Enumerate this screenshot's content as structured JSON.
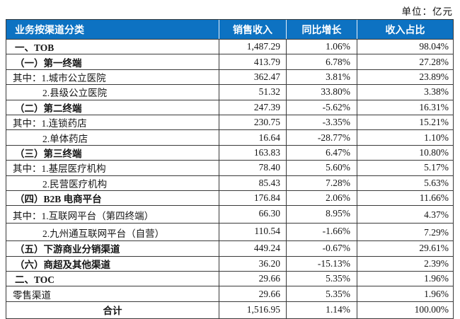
{
  "unit_note": "单位：亿元",
  "colors": {
    "header_bg": "#0D72C2",
    "header_text": "#FFFFFF",
    "border": "#3A3A3A",
    "body_text": "#151515"
  },
  "table": {
    "headers": [
      "业务按渠道分类",
      "销售收入",
      "同比增长",
      "收入占比"
    ],
    "rows": [
      {
        "label": "一、TOB",
        "revenue": "1,487.29",
        "growth": "1.06%",
        "share": "98.04%",
        "bold": true,
        "indent": "l1"
      },
      {
        "label": "（一）第一终端",
        "revenue": "413.79",
        "growth": "6.78%",
        "share": "27.28%",
        "bold": true,
        "indent": "l1"
      },
      {
        "label": "其中：1.城市公立医院",
        "revenue": "362.47",
        "growth": "3.81%",
        "share": "23.89%",
        "bold": false,
        "indent": "qz"
      },
      {
        "label": "2.县级公立医院",
        "revenue": "51.32",
        "growth": "33.80%",
        "share": "3.38%",
        "bold": false,
        "indent": "sub"
      },
      {
        "label": "（二）第二终端",
        "revenue": "247.39",
        "growth": "-5.62%",
        "share": "16.31%",
        "bold": true,
        "indent": "l1"
      },
      {
        "label": "其中：1.连锁药店",
        "revenue": "230.75",
        "growth": "-3.35%",
        "share": "15.21%",
        "bold": false,
        "indent": "qz"
      },
      {
        "label": "2.单体药店",
        "revenue": "16.64",
        "growth": "-28.77%",
        "share": "1.10%",
        "bold": false,
        "indent": "sub"
      },
      {
        "label": "（三）第三终端",
        "revenue": "163.83",
        "growth": "6.47%",
        "share": "10.80%",
        "bold": true,
        "indent": "l1"
      },
      {
        "label": "其中：1.基层医疗机构",
        "revenue": "78.40",
        "growth": "5.60%",
        "share": "5.17%",
        "bold": false,
        "indent": "qz"
      },
      {
        "label": "2.民营医疗机构",
        "revenue": "85.43",
        "growth": "7.28%",
        "share": "5.63%",
        "bold": false,
        "indent": "sub"
      },
      {
        "label": "（四）B2B 电商平台",
        "revenue": "176.84",
        "growth": "2.06%",
        "share": "11.66%",
        "bold": true,
        "indent": "l1"
      },
      {
        "label": "其中：1.互联网平台（第四终端）",
        "revenue": "66.30",
        "growth": "8.95%",
        "share": "4.37%",
        "bold": false,
        "indent": "qz",
        "tall": true
      },
      {
        "label": "2.九州通互联网平台（自营）",
        "revenue": "110.54",
        "growth": "-1.66%",
        "share": "7.29%",
        "bold": false,
        "indent": "sub",
        "tall": true
      },
      {
        "label": "（五）下游商业分销渠道",
        "revenue": "449.24",
        "growth": "-0.67%",
        "share": "29.61%",
        "bold": true,
        "indent": "l1"
      },
      {
        "label": "（六）商超及其他渠道",
        "revenue": "36.20",
        "growth": "-15.13%",
        "share": "2.39%",
        "bold": true,
        "indent": "l1"
      },
      {
        "label": "二、TOC",
        "revenue": "29.66",
        "growth": "5.35%",
        "share": "1.96%",
        "bold": true,
        "indent": "l1"
      },
      {
        "label": "零售渠道",
        "revenue": "29.66",
        "growth": "5.35%",
        "share": "1.96%",
        "bold": false,
        "indent": "qz"
      },
      {
        "label": "合计",
        "revenue": "1,516.95",
        "growth": "1.14%",
        "share": "100.00%",
        "bold": true,
        "indent": "center"
      }
    ]
  }
}
